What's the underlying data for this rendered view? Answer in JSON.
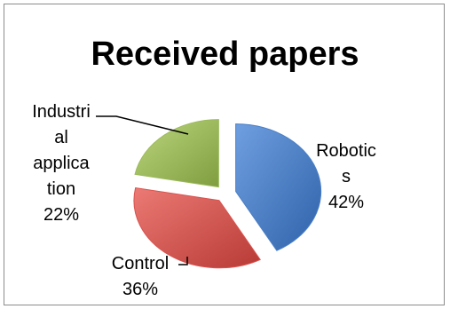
{
  "chart_data": {
    "type": "pie",
    "title": "Received papers",
    "categories": [
      "Robotics",
      "Control",
      "Industrial application"
    ],
    "values": [
      42,
      36,
      22
    ],
    "unit": "%",
    "exploded": true,
    "colors": [
      "#4a7fc6",
      "#d9524e",
      "#9cba5a"
    ],
    "labels": [
      {
        "name_lines": [
          "Robotic",
          "s"
        ],
        "pct": "42%"
      },
      {
        "name_lines": [
          "Control"
        ],
        "pct": "36%"
      },
      {
        "name_lines": [
          "Industri",
          "al",
          "applica",
          "tion"
        ],
        "pct": "22%"
      }
    ]
  }
}
